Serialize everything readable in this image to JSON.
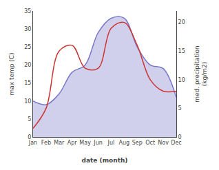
{
  "chart_data": {
    "type": "line",
    "xlabel": "date (month)",
    "ylabel": "max temp (C)",
    "y2label": "med. precipitation\n(kg/m2)",
    "categories": [
      "Jan",
      "Feb",
      "Mar",
      "Apr",
      "May",
      "Jun",
      "Jul",
      "Aug",
      "Sep",
      "Oct",
      "Nov",
      "Dec"
    ],
    "series": [
      {
        "type": "area",
        "color": "#7878c8",
        "values": [
          10,
          9,
          12,
          18,
          20,
          29,
          33,
          33,
          25,
          20,
          19,
          11
        ]
      },
      {
        "type": "line",
        "color": "#cc3333",
        "axis": "y2",
        "values": [
          1.5,
          5,
          15,
          16,
          12,
          12,
          19,
          20,
          16,
          10,
          8,
          8
        ]
      }
    ],
    "ylim": [
      0,
      35
    ],
    "yticks": [
      0,
      5,
      10,
      15,
      20,
      25,
      30,
      35
    ],
    "y2lim": [
      0,
      22
    ],
    "y2ticks": [
      0,
      5,
      10,
      15,
      20
    ],
    "grid": false
  }
}
